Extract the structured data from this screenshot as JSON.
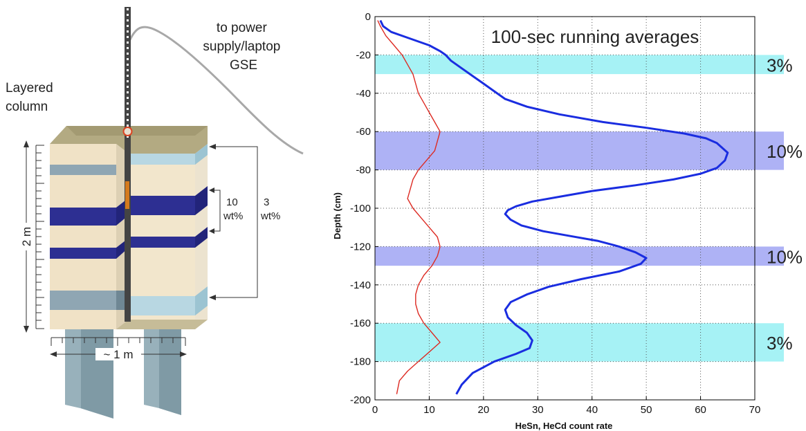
{
  "diagram": {
    "column_label": [
      "Layered",
      "column"
    ],
    "power_label": [
      "to power",
      "supply/laptop",
      "GSE"
    ],
    "height_label": "2 m",
    "width_label": "~ 1 m",
    "bracket_10": [
      "10",
      "wt%"
    ],
    "bracket_3": [
      "3",
      "wt%"
    ],
    "colors": {
      "soil": "#f0e2c6",
      "soil_side": "#ece3cf",
      "top": "#b3aa82",
      "dark_band": "#2d2f92",
      "light_band": "#b8d7e2",
      "grey_band": "#8fa6b3",
      "leg": "#98b1bb",
      "probe": "#444444"
    }
  },
  "chart_data": {
    "type": "line",
    "title": "100-sec running averages",
    "xlabel": "HeSn, HeCd count rate",
    "ylabel": "Depth (cm)",
    "xlim": [
      0,
      70
    ],
    "ylim": [
      -200,
      0
    ],
    "xticks": [
      0,
      10,
      20,
      30,
      40,
      50,
      60,
      70
    ],
    "yticks": [
      0,
      -20,
      -40,
      -60,
      -80,
      -100,
      -120,
      -140,
      -160,
      -180,
      -200
    ],
    "grid": true,
    "bands": [
      {
        "from": -20,
        "to": -30,
        "label": "3%",
        "color": "#a6f2f5"
      },
      {
        "from": -60,
        "to": -80,
        "label": "10%",
        "color": "#aeb2f5"
      },
      {
        "from": -120,
        "to": -130,
        "label": "10%",
        "color": "#aeb2f5"
      },
      {
        "from": -160,
        "to": -180,
        "label": "3%",
        "color": "#a6f2f5"
      }
    ],
    "series": [
      {
        "color": "#1a2de0",
        "x": [
          1,
          1.5,
          3,
          6,
          10,
          12,
          13,
          14,
          16,
          18,
          20,
          22,
          24,
          28,
          34,
          42,
          50,
          57,
          61,
          63,
          65,
          64.5,
          63,
          60,
          55,
          48,
          40,
          34,
          29,
          26,
          24.5,
          24,
          25,
          27,
          31,
          36,
          41,
          45,
          48,
          50,
          49,
          45,
          38,
          32,
          28,
          25,
          24,
          24.5,
          26,
          28,
          29,
          28.5,
          26,
          22,
          18,
          16,
          15
        ],
        "y": [
          -2,
          -5,
          -8,
          -11,
          -15,
          -18,
          -20,
          -23,
          -27,
          -31,
          -35,
          -39,
          -43,
          -47,
          -51,
          -55,
          -58,
          -61,
          -63.5,
          -66,
          -71,
          -75,
          -79,
          -82,
          -85,
          -88,
          -91,
          -94,
          -96.5,
          -99,
          -101,
          -103,
          -106,
          -109,
          -112,
          -114.5,
          -117,
          -120,
          -123,
          -126,
          -129,
          -133,
          -137,
          -141,
          -145,
          -149,
          -153,
          -157,
          -161,
          -165,
          -169,
          -173,
          -176,
          -180,
          -186,
          -192,
          -197
        ]
      },
      {
        "color": "#dd2a22",
        "x": [
          0.5,
          1,
          2,
          3.5,
          5,
          6,
          7,
          7.5,
          8,
          9,
          10,
          11,
          12,
          11.5,
          11,
          9.5,
          8,
          7,
          6.5,
          6,
          7,
          8.5,
          10,
          11.5,
          12,
          11.5,
          10.5,
          9,
          8,
          7.5,
          7.5,
          8,
          9,
          10.5,
          12,
          10,
          8,
          6,
          4.5,
          4
        ],
        "y": [
          -2,
          -5,
          -10,
          -15,
          -20,
          -25,
          -30,
          -35,
          -40,
          -45,
          -50,
          -55,
          -60,
          -65,
          -70,
          -75,
          -80,
          -85,
          -90,
          -95,
          -100,
          -105,
          -110,
          -115,
          -120,
          -125,
          -130,
          -135,
          -140,
          -145,
          -150,
          -155,
          -160,
          -165,
          -170,
          -175,
          -180,
          -185,
          -190,
          -197
        ]
      }
    ]
  }
}
